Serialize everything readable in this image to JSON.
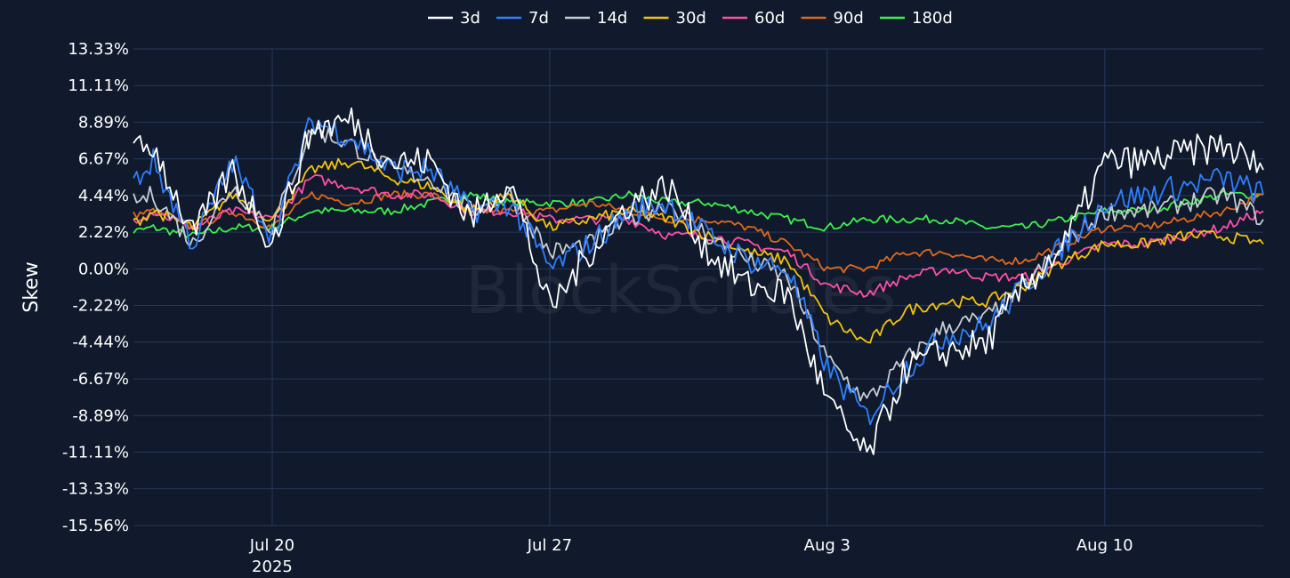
{
  "chart_data": {
    "type": "line",
    "title": "",
    "xlabel": "",
    "ylabel": "Skew",
    "watermark": "BlockScholes",
    "grid": true,
    "legend_position": "top-center",
    "colors": {
      "background": "#101a2c",
      "grid": "#26385a",
      "text": "#ffffff"
    },
    "x_range": [
      "2025-07-16T12:00",
      "2025-08-14T00:00"
    ],
    "y_range": [
      -15.56,
      13.33
    ],
    "x_ticks": [
      {
        "date": "2025-07-20",
        "label": "Jul 20",
        "sublabel": "2025"
      },
      {
        "date": "2025-07-27",
        "label": "Jul 27",
        "sublabel": ""
      },
      {
        "date": "2025-08-03",
        "label": "Aug 3",
        "sublabel": ""
      },
      {
        "date": "2025-08-10",
        "label": "Aug 10",
        "sublabel": ""
      }
    ],
    "y_ticks": [
      {
        "value": 13.33,
        "label": "13.33%"
      },
      {
        "value": 11.11,
        "label": "11.11%"
      },
      {
        "value": 8.89,
        "label": "8.89%"
      },
      {
        "value": 6.67,
        "label": "6.67%"
      },
      {
        "value": 4.44,
        "label": "4.44%"
      },
      {
        "value": 2.22,
        "label": "2.22%"
      },
      {
        "value": 0.0,
        "label": "0.00%"
      },
      {
        "value": -2.22,
        "label": "-2.22%"
      },
      {
        "value": -4.44,
        "label": "-4.44%"
      },
      {
        "value": -6.67,
        "label": "-6.67%"
      },
      {
        "value": -8.89,
        "label": "-8.89%"
      },
      {
        "value": -11.11,
        "label": "-11.11%"
      },
      {
        "value": -13.33,
        "label": "-13.33%"
      },
      {
        "value": -15.56,
        "label": "-15.56%"
      }
    ],
    "x": [
      "2025-07-16",
      "2025-07-17",
      "2025-07-18",
      "2025-07-19",
      "2025-07-20",
      "2025-07-21",
      "2025-07-22",
      "2025-07-23",
      "2025-07-24",
      "2025-07-25",
      "2025-07-26",
      "2025-07-27",
      "2025-07-28",
      "2025-07-29",
      "2025-07-30",
      "2025-07-31",
      "2025-08-01",
      "2025-08-02",
      "2025-08-03",
      "2025-08-04",
      "2025-08-05",
      "2025-08-06",
      "2025-08-07",
      "2025-08-08",
      "2025-08-09",
      "2025-08-10",
      "2025-08-11",
      "2025-08-12",
      "2025-08-13",
      "2025-08-14"
    ],
    "series": [
      {
        "name": "3d",
        "color": "#ffffff",
        "values": [
          6.5,
          7.5,
          2.0,
          6.0,
          1.5,
          8.5,
          9.0,
          6.5,
          6.5,
          3.0,
          5.5,
          -2.5,
          1.0,
          4.0,
          5.0,
          1.0,
          -1.0,
          -1.5,
          -8.0,
          -11.5,
          -6.0,
          -5.0,
          -4.5,
          -1.0,
          1.5,
          6.5,
          6.5,
          7.0,
          7.5,
          6.0
        ]
      },
      {
        "name": "7d",
        "color": "#2f7fff",
        "values": [
          4.0,
          6.5,
          1.5,
          6.5,
          2.0,
          9.0,
          8.0,
          6.0,
          6.0,
          3.5,
          4.0,
          0.0,
          1.5,
          3.5,
          4.0,
          2.0,
          0.5,
          0.0,
          -6.0,
          -9.0,
          -6.0,
          -4.0,
          -3.5,
          -1.0,
          1.5,
          4.0,
          4.5,
          5.0,
          5.5,
          4.5
        ]
      },
      {
        "name": "14d",
        "color": "#c8ccd4",
        "values": [
          3.5,
          4.5,
          1.5,
          5.0,
          2.5,
          8.5,
          7.5,
          6.0,
          5.5,
          3.5,
          4.5,
          1.0,
          1.5,
          3.0,
          4.0,
          2.0,
          0.5,
          -0.5,
          -5.5,
          -8.0,
          -5.5,
          -3.5,
          -3.0,
          -1.0,
          1.5,
          3.5,
          3.5,
          4.0,
          4.5,
          3.0
        ]
      },
      {
        "name": "30d",
        "color": "#f4c20d",
        "values": [
          2.0,
          3.5,
          2.5,
          4.5,
          3.0,
          6.0,
          6.5,
          5.5,
          5.0,
          3.5,
          4.5,
          2.5,
          3.0,
          3.5,
          3.0,
          2.0,
          1.0,
          0.5,
          -3.0,
          -4.5,
          -2.5,
          -2.0,
          -2.0,
          -1.0,
          0.5,
          1.5,
          1.5,
          2.0,
          2.0,
          1.5
        ]
      },
      {
        "name": "60d",
        "color": "#ff4fa8",
        "values": [
          2.5,
          3.5,
          2.5,
          3.5,
          3.0,
          5.5,
          5.0,
          4.5,
          4.5,
          3.5,
          3.5,
          3.0,
          3.0,
          3.0,
          2.0,
          2.0,
          1.5,
          1.0,
          -1.0,
          -1.5,
          -0.5,
          0.0,
          -0.5,
          -0.5,
          0.5,
          1.5,
          1.5,
          2.0,
          2.5,
          3.5
        ]
      },
      {
        "name": "90d",
        "color": "#e0681c",
        "values": [
          3.0,
          3.5,
          2.5,
          3.5,
          2.5,
          4.5,
          4.0,
          4.5,
          4.5,
          3.5,
          3.5,
          3.5,
          4.0,
          3.5,
          3.0,
          3.0,
          2.5,
          1.5,
          0.0,
          0.0,
          1.0,
          1.0,
          0.5,
          0.5,
          1.5,
          2.5,
          2.5,
          3.0,
          3.5,
          4.5
        ]
      },
      {
        "name": "180d",
        "color": "#3ef04f",
        "values": [
          2.0,
          2.5,
          2.0,
          2.5,
          2.5,
          3.5,
          3.5,
          3.5,
          4.0,
          4.5,
          4.0,
          4.0,
          4.0,
          4.5,
          4.0,
          4.0,
          3.5,
          3.0,
          2.5,
          3.0,
          3.0,
          3.0,
          2.5,
          2.5,
          3.0,
          3.5,
          3.5,
          4.0,
          4.5,
          4.5
        ]
      }
    ]
  }
}
